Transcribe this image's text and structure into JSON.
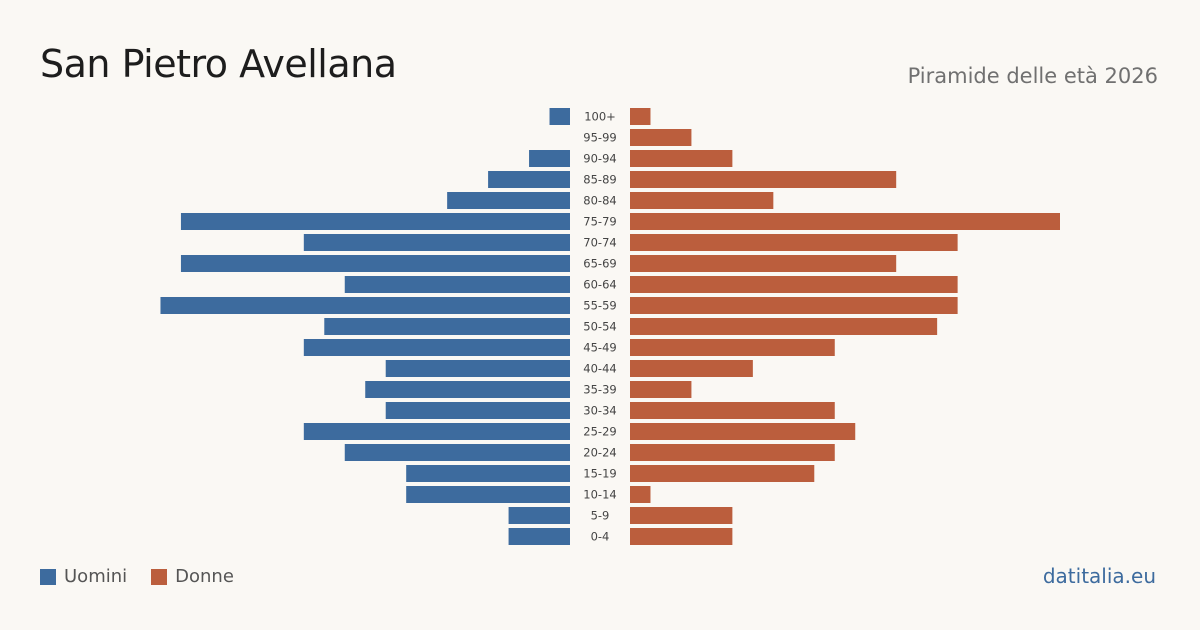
{
  "header": {
    "title": "San Pietro Avellana",
    "subtitle": "Piramide delle età 2026"
  },
  "legend": {
    "men_label": "Uomini",
    "women_label": "Donne"
  },
  "footer": {
    "source": "datitalia.eu"
  },
  "colors": {
    "men": "#3d6b9e",
    "women": "#bb5e3d",
    "label_text": "#444444",
    "background": "#faf8f4"
  },
  "chart_data": {
    "type": "bar",
    "orientation": "horizontal-pyramid",
    "categories": [
      "100+",
      "95-99",
      "90-94",
      "85-89",
      "80-84",
      "75-79",
      "70-74",
      "65-69",
      "60-64",
      "55-59",
      "50-54",
      "45-49",
      "40-44",
      "35-39",
      "30-34",
      "25-29",
      "20-24",
      "15-19",
      "10-14",
      "5-9",
      "0-4"
    ],
    "series": [
      {
        "name": "Uomini",
        "side": "left",
        "values": [
          1,
          0,
          2,
          4,
          6,
          19,
          13,
          19,
          11,
          20,
          12,
          13,
          9,
          10,
          9,
          13,
          11,
          8,
          8,
          3,
          3
        ]
      },
      {
        "name": "Donne",
        "side": "right",
        "values": [
          1,
          3,
          5,
          13,
          7,
          21,
          16,
          13,
          16,
          16,
          15,
          10,
          6,
          3,
          10,
          11,
          10,
          9,
          1,
          5,
          5
        ]
      }
    ],
    "xlim": [
      0,
      21
    ],
    "grid": false,
    "legend_position": "bottom-left"
  }
}
